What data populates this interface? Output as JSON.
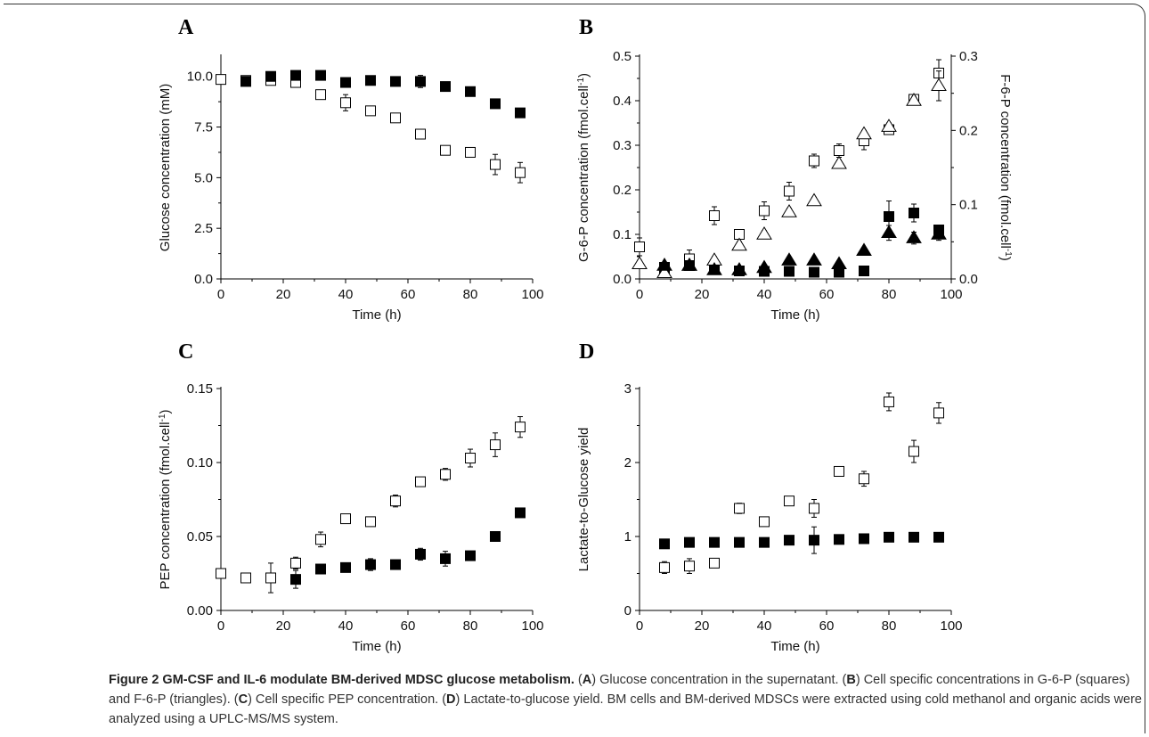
{
  "caption": {
    "title": "Figure 2 GM-CSF and IL-6 modulate BM-derived MDSC glucose metabolism.",
    "parts": [
      {
        "t": " (",
        "b": false
      },
      {
        "t": "A",
        "b": true
      },
      {
        "t": ") Glucose concentration in the supernatant. (",
        "b": false
      },
      {
        "t": "B",
        "b": true
      },
      {
        "t": ") Cell specific concentrations in G-6-P (squares) and F-6-P (triangles). (",
        "b": false
      },
      {
        "t": "C",
        "b": true
      },
      {
        "t": ") Cell specific PEP concentration. (",
        "b": false
      },
      {
        "t": "D",
        "b": true
      },
      {
        "t": ") Lactate-to-glucose yield. BM cells and BM-derived MDSCs were extracted using cold methanol and organic acids were analyzed using a UPLC-MS/MS system.",
        "b": false
      }
    ]
  },
  "chart_data": [
    {
      "id": "A",
      "type": "scatter",
      "letter": "A",
      "xlabel": "Time (h)",
      "ylabel": "Glucose concentration (mM)",
      "xlim": [
        0,
        100
      ],
      "ylim": [
        0,
        11
      ],
      "xticks": [
        0,
        20,
        40,
        60,
        80,
        100
      ],
      "yticks": [
        0.0,
        2.5,
        5.0,
        7.5,
        10.0
      ],
      "ytick_decimals": 1,
      "series": [
        {
          "marker": "square-open",
          "axis": "left",
          "x": [
            0,
            8,
            16,
            24,
            32,
            40,
            48,
            56,
            64,
            72,
            80,
            88,
            96
          ],
          "y": [
            9.85,
            9.8,
            9.8,
            9.7,
            9.1,
            8.7,
            8.3,
            7.95,
            7.15,
            6.35,
            6.25,
            5.65,
            5.25
          ],
          "err": [
            0.1,
            0.1,
            0.1,
            0.1,
            0.2,
            0.4,
            0.2,
            0.2,
            0.2,
            0.2,
            0.2,
            0.5,
            0.5
          ]
        },
        {
          "marker": "square-filled",
          "axis": "left",
          "x": [
            8,
            16,
            24,
            32,
            40,
            48,
            56,
            64,
            72,
            80,
            88,
            96
          ],
          "y": [
            9.75,
            10.0,
            10.05,
            10.05,
            9.7,
            9.8,
            9.75,
            9.75,
            9.5,
            9.25,
            8.65,
            8.2
          ],
          "err": [
            0.1,
            0.1,
            0.1,
            0.1,
            0.1,
            0.1,
            0.1,
            0.3,
            0.1,
            0.1,
            0.1,
            0.1
          ]
        }
      ]
    },
    {
      "id": "B",
      "type": "scatter",
      "letter": "B",
      "xlabel": "Time (h)",
      "ylabel": "G-6-P concentration (fmol.cell",
      "ylabel_sup": "-1",
      "ylabel_end": ")",
      "y2label": "F-6-P concentration (fmol.cell",
      "y2label_sup": "-1",
      "y2label_end": ")",
      "xlim": [
        0,
        100
      ],
      "ylim": [
        0,
        0.5
      ],
      "y2lim": [
        0,
        0.3
      ],
      "xticks": [
        0,
        20,
        40,
        60,
        80,
        100
      ],
      "yticks": [
        0.0,
        0.1,
        0.2,
        0.3,
        0.4,
        0.5
      ],
      "ytick_decimals": 1,
      "y2ticks": [
        0.0,
        0.1,
        0.2,
        0.3
      ],
      "y2tick_decimals": 1,
      "series": [
        {
          "marker": "square-open",
          "axis": "left",
          "x": [
            0,
            8,
            16,
            24,
            32,
            40,
            48,
            56,
            64,
            72,
            80,
            88,
            96
          ],
          "y": [
            0.072,
            0.02,
            0.045,
            0.142,
            0.1,
            0.153,
            0.197,
            0.265,
            0.288,
            0.31,
            0.335,
            0.403,
            0.462
          ],
          "err": [
            0.02,
            0.01,
            0.02,
            0.02,
            0.01,
            0.02,
            0.02,
            0.015,
            0.015,
            0.02,
            0.01,
            0.01,
            0.03
          ]
        },
        {
          "marker": "square-filled",
          "axis": "left",
          "x": [
            8,
            16,
            24,
            32,
            40,
            48,
            56,
            64,
            72,
            80,
            88,
            96
          ],
          "y": [
            0.026,
            0.03,
            0.022,
            0.018,
            0.017,
            0.017,
            0.015,
            0.015,
            0.018,
            0.14,
            0.148,
            0.11
          ],
          "err": [
            0.005,
            0.005,
            0.005,
            0.005,
            0.005,
            0.005,
            0.005,
            0.005,
            0.005,
            0.035,
            0.02,
            0.01
          ]
        },
        {
          "marker": "triangle-open",
          "axis": "right",
          "x": [
            0,
            8,
            16,
            24,
            32,
            40,
            48,
            56,
            64,
            72,
            80,
            88,
            96
          ],
          "y": [
            0.02,
            0.008,
            0.018,
            0.025,
            0.045,
            0.06,
            0.09,
            0.105,
            0.155,
            0.195,
            0.205,
            0.24,
            0.26
          ],
          "err": [
            0.005,
            0.005,
            0.005,
            0.005,
            0.005,
            0.005,
            0.005,
            0.005,
            0.005,
            0.005,
            0.005,
            0.005,
            0.02
          ]
        },
        {
          "marker": "triangle-filled",
          "axis": "right",
          "x": [
            8,
            16,
            24,
            32,
            40,
            48,
            56,
            64,
            72,
            80,
            88,
            96
          ],
          "y": [
            0.018,
            0.018,
            0.012,
            0.012,
            0.015,
            0.025,
            0.025,
            0.02,
            0.038,
            0.062,
            0.055,
            0.06
          ],
          "err": [
            0.004,
            0.004,
            0.004,
            0.004,
            0.004,
            0.004,
            0.004,
            0.004,
            0.004,
            0.01,
            0.008,
            0.008
          ]
        }
      ]
    },
    {
      "id": "C",
      "type": "scatter",
      "letter": "C",
      "xlabel": "Time (h)",
      "ylabel": "PEP concentration (fmol.cell",
      "ylabel_sup": "-1",
      "ylabel_end": ")",
      "xlim": [
        0,
        100
      ],
      "ylim": [
        0,
        0.15
      ],
      "xticks": [
        0,
        20,
        40,
        60,
        80,
        100
      ],
      "yticks": [
        0.0,
        0.05,
        0.1,
        0.15
      ],
      "ytick_decimals": 2,
      "series": [
        {
          "marker": "square-open",
          "axis": "left",
          "x": [
            0,
            8,
            16,
            24,
            32,
            40,
            48,
            56,
            64,
            72,
            80,
            88,
            96
          ],
          "y": [
            0.025,
            0.022,
            0.022,
            0.032,
            0.048,
            0.062,
            0.06,
            0.074,
            0.087,
            0.092,
            0.103,
            0.112,
            0.124
          ],
          "err": [
            0.003,
            0.003,
            0.01,
            0.004,
            0.005,
            0.002,
            0.002,
            0.004,
            0.002,
            0.004,
            0.006,
            0.008,
            0.007
          ]
        },
        {
          "marker": "square-filled",
          "axis": "left",
          "x": [
            24,
            32,
            40,
            48,
            56,
            64,
            72,
            80,
            88,
            96
          ],
          "y": [
            0.021,
            0.028,
            0.029,
            0.031,
            0.031,
            0.038,
            0.035,
            0.037,
            0.05,
            0.066
          ],
          "err": [
            0.006,
            0.003,
            0.002,
            0.004,
            0.003,
            0.004,
            0.005,
            0.003,
            0.002,
            0.002
          ]
        }
      ]
    },
    {
      "id": "D",
      "type": "scatter",
      "letter": "D",
      "xlabel": "Time (h)",
      "ylabel": "Lactate-to-Glucose yield",
      "xlim": [
        0,
        100
      ],
      "ylim": [
        0,
        3
      ],
      "xticks": [
        0,
        20,
        40,
        60,
        80,
        100
      ],
      "yticks": [
        0,
        1,
        2,
        3
      ],
      "ytick_decimals": 0,
      "series": [
        {
          "marker": "square-open",
          "axis": "left",
          "x": [
            8,
            16,
            24,
            32,
            40,
            48,
            56,
            64,
            72,
            80,
            88,
            96
          ],
          "y": [
            0.58,
            0.6,
            0.64,
            1.38,
            1.2,
            1.48,
            1.38,
            1.88,
            1.78,
            2.82,
            2.15,
            2.67
          ],
          "err": [
            0.08,
            0.1,
            0.05,
            0.07,
            0.05,
            0.05,
            0.12,
            0.04,
            0.1,
            0.12,
            0.15,
            0.14
          ]
        },
        {
          "marker": "square-filled",
          "axis": "left",
          "x": [
            8,
            16,
            24,
            32,
            40,
            48,
            56,
            64,
            72,
            80,
            88,
            96
          ],
          "y": [
            0.9,
            0.92,
            0.92,
            0.92,
            0.92,
            0.95,
            0.95,
            0.96,
            0.97,
            0.99,
            0.99,
            0.99
          ],
          "err": [
            0.03,
            0.03,
            0.03,
            0.03,
            0.03,
            0.03,
            0.18,
            0.03,
            0.03,
            0.03,
            0.03,
            0.06
          ]
        }
      ]
    }
  ]
}
